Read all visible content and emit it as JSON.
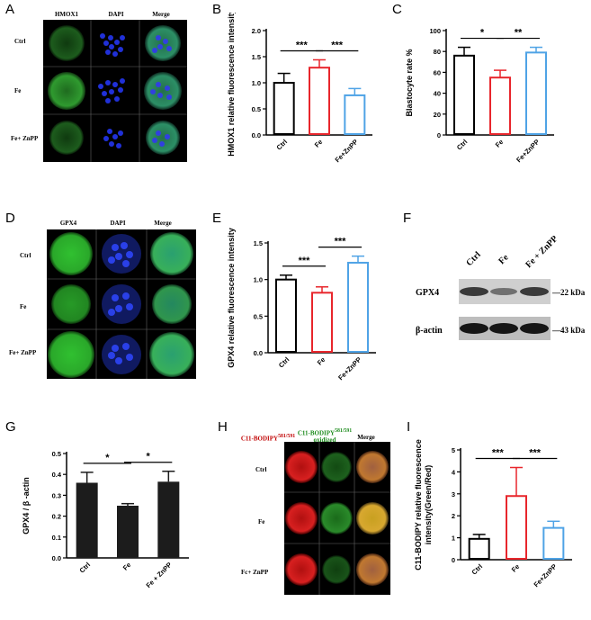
{
  "panels": {
    "A": {
      "letter": "A",
      "columns": [
        "HMOX1",
        "DAPI",
        "Merge"
      ],
      "rows": [
        "Ctrl",
        "Fe",
        "Fe+ ZnPP"
      ]
    },
    "B": {
      "letter": "B"
    },
    "C": {
      "letter": "C"
    },
    "D": {
      "letter": "D",
      "columns": [
        "GPX4",
        "DAPI",
        "Merge"
      ],
      "rows": [
        "Ctrl",
        "Fe",
        "Fe+ ZnPP"
      ]
    },
    "E": {
      "letter": "E"
    },
    "F": {
      "letter": "F",
      "lanes": [
        "Ctrl",
        "Fe",
        "Fe + ZnPP"
      ],
      "rows": [
        {
          "label": "GPX4",
          "kda": "—22 kDa"
        },
        {
          "label": "β-actin",
          "kda": "—43 kDa"
        }
      ]
    },
    "G": {
      "letter": "G"
    },
    "H": {
      "letter": "H",
      "col1": "C11-BODIPY",
      "col1_sup": "581/591",
      "col2": "C11-BODIPY",
      "col2_sup": "581/591",
      "col2_sub": "oxidized",
      "col3": "Merge",
      "rows": [
        "Ctrl",
        "Fe",
        "Fc+ ZnPP"
      ]
    },
    "I": {
      "letter": "I"
    }
  },
  "chart_data": [
    {
      "id": "B",
      "type": "bar",
      "title": "",
      "ylabel": "HMOX1 relative fluorescence intensity",
      "categories": [
        "Ctrl",
        "Fe",
        "Fe+ZnPP"
      ],
      "values": [
        1.0,
        1.29,
        0.76
      ],
      "errors": [
        0.18,
        0.15,
        0.13
      ],
      "ylim": [
        0,
        2.0
      ],
      "yticks": [
        "0.0",
        "0.5",
        "1.0",
        "1.5",
        "2.0"
      ],
      "colors": [
        "#000000",
        "#e8262c",
        "#4fa3e6"
      ],
      "significance": [
        {
          "from": 0,
          "to": 1,
          "label": "***"
        },
        {
          "from": 1,
          "to": 2,
          "label": "***"
        }
      ]
    },
    {
      "id": "C",
      "type": "bar",
      "title": "",
      "ylabel": "Blastocyte rate %",
      "categories": [
        "Ctrl",
        "Fe",
        "Fe+ZnPP"
      ],
      "values": [
        76,
        55,
        79
      ],
      "errors": [
        8,
        7,
        5
      ],
      "ylim": [
        0,
        100
      ],
      "yticks": [
        "0",
        "20",
        "40",
        "60",
        "80",
        "100"
      ],
      "colors": [
        "#000000",
        "#e8262c",
        "#4fa3e6"
      ],
      "significance": [
        {
          "from": 0,
          "to": 1,
          "label": "*"
        },
        {
          "from": 1,
          "to": 2,
          "label": "**"
        }
      ]
    },
    {
      "id": "E",
      "type": "bar",
      "title": "",
      "ylabel": "GPX4 relative fluorescence intensity",
      "categories": [
        "Ctrl",
        "Fe",
        "Fe+ZnPP"
      ],
      "values": [
        1.0,
        0.82,
        1.23
      ],
      "errors": [
        0.06,
        0.08,
        0.09
      ],
      "ylim": [
        0,
        1.5
      ],
      "yticks": [
        "0.0",
        "0.5",
        "1.0",
        "1.5"
      ],
      "colors": [
        "#000000",
        "#e8262c",
        "#4fa3e6"
      ],
      "significance": [
        {
          "from": 0,
          "to": 1,
          "label": "***"
        },
        {
          "from": 1,
          "to": 2,
          "label": "***"
        }
      ]
    },
    {
      "id": "G",
      "type": "bar",
      "title": "",
      "ylabel": "GPX4 / β -actin",
      "categories": [
        "Ctrl",
        "Fe",
        "Fe + ZnPP"
      ],
      "values": [
        0.36,
        0.25,
        0.365
      ],
      "errors": [
        0.05,
        0.01,
        0.05
      ],
      "ylim": [
        0,
        0.5
      ],
      "yticks": [
        "0.0",
        "0.1",
        "0.2",
        "0.3",
        "0.4",
        "0.5"
      ],
      "colors": [
        "#1c1c1c",
        "#1c1c1c",
        "#1c1c1c"
      ],
      "filled": true,
      "significance": [
        {
          "from": 0,
          "to": 1,
          "label": "*"
        },
        {
          "from": 1,
          "to": 2,
          "label": "*"
        }
      ]
    },
    {
      "id": "I",
      "type": "bar",
      "title": "",
      "ylabel": "C11-BODIPY relative fluorescence intensity(Green/Red)",
      "categories": [
        "Ctrl",
        "Fe",
        "Fe+ZnPP"
      ],
      "values": [
        0.95,
        2.9,
        1.45
      ],
      "errors": [
        0.2,
        1.3,
        0.3
      ],
      "ylim": [
        0,
        5
      ],
      "yticks": [
        "0",
        "1",
        "2",
        "3",
        "4",
        "5"
      ],
      "colors": [
        "#000000",
        "#e8262c",
        "#4fa3e6"
      ],
      "significance": [
        {
          "from": 0,
          "to": 1,
          "label": "***"
        },
        {
          "from": 1,
          "to": 2,
          "label": "***"
        }
      ]
    }
  ]
}
